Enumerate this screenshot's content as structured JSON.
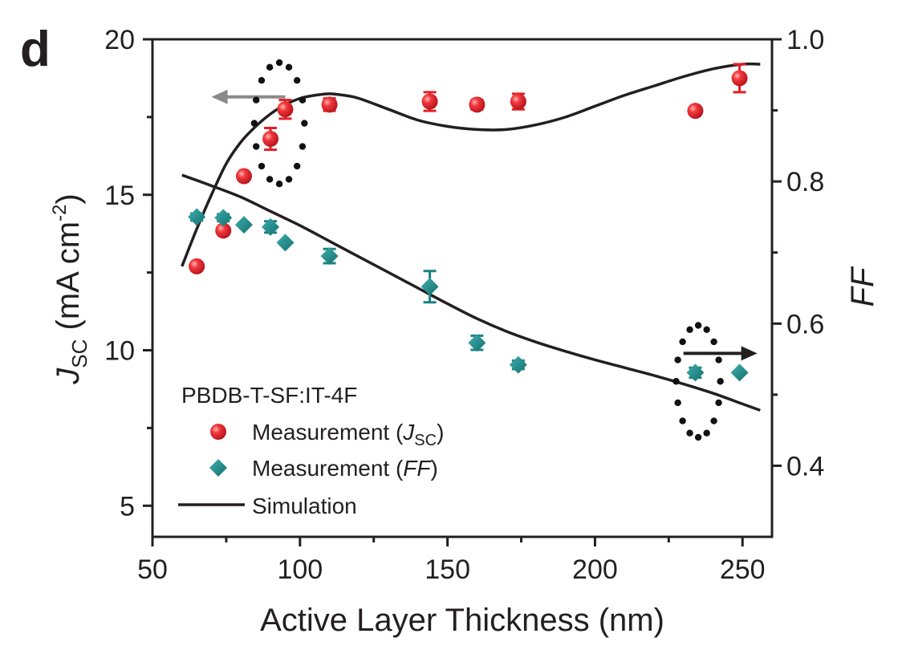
{
  "chart_data": {
    "type": "scatter",
    "panel_label": "d",
    "xlabel": "Active Layer Thickness (nm)",
    "ylabel_left": {
      "main": "J",
      "sub": "SC",
      "unit_open": " (mA cm",
      "unit_sup": "-2",
      "unit_close": ")"
    },
    "ylabel_right": "FF",
    "xlim": [
      50,
      260
    ],
    "ylim_left": [
      4,
      20
    ],
    "ylim_right": [
      0.3,
      1.0
    ],
    "xticks": [
      50,
      100,
      150,
      200,
      250
    ],
    "xtick_labels": [
      "50",
      "100",
      "150",
      "200",
      "250"
    ],
    "yticks_left": [
      5,
      10,
      15,
      20
    ],
    "ytick_labels_left": [
      "5",
      "10",
      "15",
      "20"
    ],
    "yticks_right": [
      0.4,
      0.6,
      0.8,
      1.0
    ],
    "ytick_labels_right": [
      "0.4",
      "0.6",
      "0.8",
      "1.0"
    ],
    "series": [
      {
        "name": "Measurement (JSC)",
        "axis": "left",
        "marker": "circle",
        "color": "#e41e26",
        "points": [
          {
            "x": 65,
            "y": 12.7,
            "err": 0
          },
          {
            "x": 74,
            "y": 13.85,
            "err": 0
          },
          {
            "x": 81,
            "y": 15.6,
            "err": 0
          },
          {
            "x": 90,
            "y": 16.8,
            "err": 0.35
          },
          {
            "x": 95,
            "y": 17.75,
            "err": 0.3
          },
          {
            "x": 110,
            "y": 17.9,
            "err": 0.2
          },
          {
            "x": 144,
            "y": 18.0,
            "err": 0.3
          },
          {
            "x": 160,
            "y": 17.9,
            "err": 0.15
          },
          {
            "x": 174,
            "y": 18.0,
            "err": 0.25
          },
          {
            "x": 234,
            "y": 17.7,
            "err": 0
          },
          {
            "x": 249,
            "y": 18.75,
            "err": 0.45
          }
        ]
      },
      {
        "name": "Measurement (FF)",
        "axis": "right",
        "marker": "diamond",
        "color": "#1b8383",
        "points": [
          {
            "x": 65,
            "y": 0.75,
            "err": 0.005
          },
          {
            "x": 74,
            "y": 0.749,
            "err": 0.005
          },
          {
            "x": 81,
            "y": 0.739,
            "err": 0
          },
          {
            "x": 90,
            "y": 0.736,
            "err": 0.008
          },
          {
            "x": 95,
            "y": 0.714,
            "err": 0
          },
          {
            "x": 110,
            "y": 0.695,
            "err": 0.01
          },
          {
            "x": 144,
            "y": 0.652,
            "err": 0.022
          },
          {
            "x": 160,
            "y": 0.573,
            "err": 0.01
          },
          {
            "x": 174,
            "y": 0.542,
            "err": 0.006
          },
          {
            "x": 234,
            "y": 0.531,
            "err": 0.007
          },
          {
            "x": 249,
            "y": 0.531,
            "err": 0
          }
        ]
      },
      {
        "name": "Simulation (JSC)",
        "axis": "left",
        "type": "line",
        "color": "#231f20",
        "x": [
          60,
          65,
          70,
          75,
          80,
          85,
          90,
          95,
          100,
          105,
          110,
          115,
          120,
          130,
          140,
          150,
          160,
          170,
          180,
          190,
          200,
          210,
          220,
          230,
          240,
          250,
          256
        ],
        "y": [
          12.7,
          13.9,
          15.0,
          16.0,
          16.7,
          17.2,
          17.6,
          17.9,
          18.1,
          18.2,
          18.25,
          18.2,
          18.1,
          17.75,
          17.4,
          17.2,
          17.1,
          17.1,
          17.25,
          17.5,
          17.85,
          18.2,
          18.5,
          18.8,
          19.05,
          19.2,
          19.2
        ]
      },
      {
        "name": "Simulation (FF)",
        "axis": "right",
        "type": "line",
        "color": "#231f20",
        "x": [
          60,
          70,
          80,
          90,
          100,
          110,
          120,
          130,
          140,
          150,
          160,
          170,
          180,
          190,
          200,
          210,
          220,
          230,
          240,
          250,
          256
        ],
        "y": [
          0.809,
          0.794,
          0.778,
          0.758,
          0.738,
          0.716,
          0.694,
          0.672,
          0.65,
          0.628,
          0.607,
          0.589,
          0.574,
          0.561,
          0.549,
          0.538,
          0.527,
          0.515,
          0.502,
          0.487,
          0.478
        ]
      }
    ],
    "annotations": [
      {
        "type": "arrow",
        "direction": "left",
        "label": "points to left axis (JSC)",
        "color": "#8a8a8a",
        "x_from": 95,
        "x_to": 70,
        "y": 18.15,
        "axis": "left"
      },
      {
        "type": "arrow",
        "direction": "right",
        "label": "points to right axis (FF)",
        "color": "#231f20",
        "x_from": 230,
        "x_to": 255,
        "y": 9.9,
        "axis": "left"
      },
      {
        "type": "dotted-ellipse",
        "cx": 93,
        "cy": 17.3,
        "rx": 8.5,
        "ry": 1.95,
        "axis": "left"
      },
      {
        "type": "dotted-ellipse",
        "cx": 235,
        "cy": 9.0,
        "rx": 7.5,
        "ry": 1.8,
        "axis": "left"
      }
    ],
    "legend": {
      "title": "PBDB-T-SF:IT-4F",
      "placement": "bottom-left",
      "entries": [
        {
          "marker": "circle",
          "color": "#e41e26",
          "text": "Measurement (",
          "italic": "J",
          "sub": "SC",
          "close": ")"
        },
        {
          "marker": "diamond",
          "color": "#1b8383",
          "text": "Measurement (",
          "italic": "FF",
          "sub": "",
          "close": ")"
        },
        {
          "marker": "line",
          "color": "#231f20",
          "text": "Simulation",
          "italic": "",
          "sub": "",
          "close": ""
        }
      ]
    }
  }
}
